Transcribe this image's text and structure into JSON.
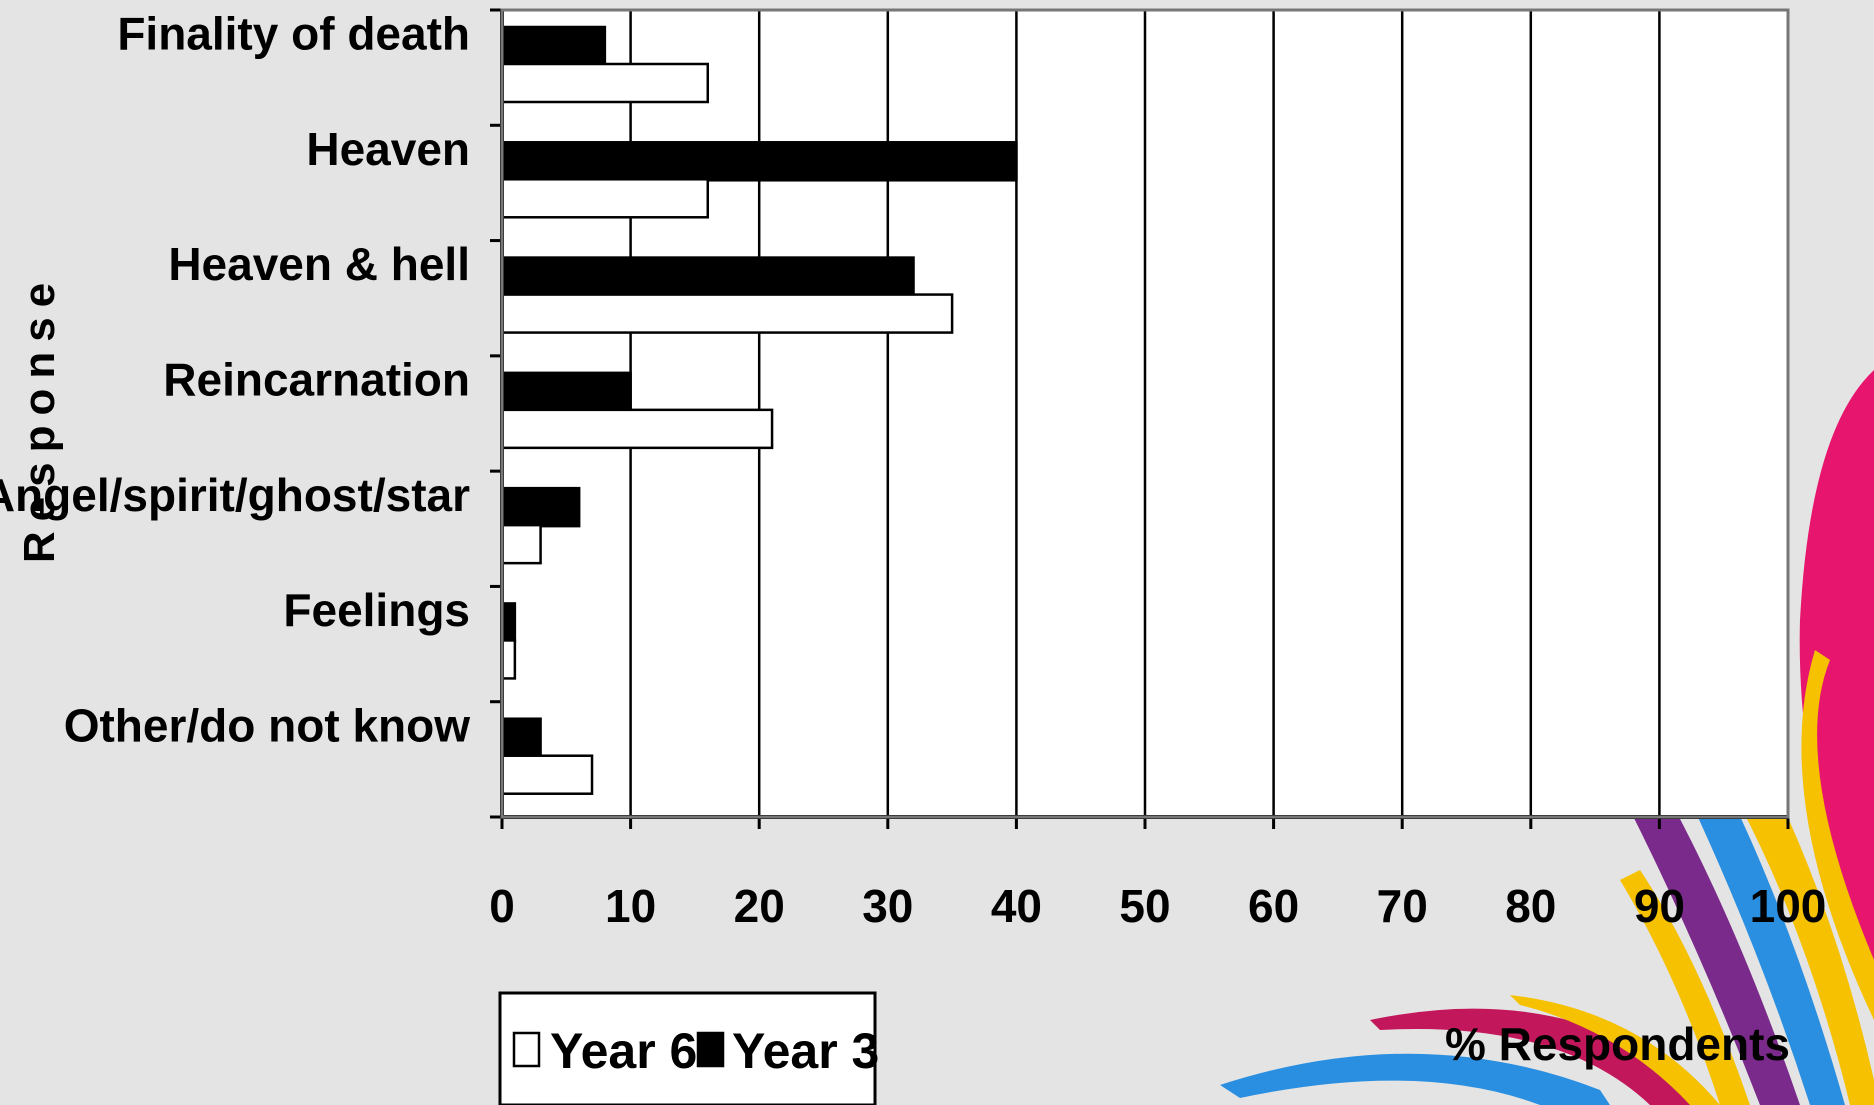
{
  "chart_data": {
    "type": "bar",
    "orientation": "horizontal",
    "categories": [
      "Finality of death",
      "Heaven",
      "Heaven & hell",
      "Reincarnation",
      "Angel/spirit/ghost/star",
      "Feelings",
      "Other/do not know"
    ],
    "series": [
      {
        "name": "Year 3",
        "color": "#000000",
        "values": [
          8,
          40,
          32,
          10,
          6,
          1,
          3
        ]
      },
      {
        "name": "Year 6",
        "color": "#ffffff",
        "values": [
          16,
          16,
          35,
          21,
          3,
          1,
          7
        ]
      }
    ],
    "xlim": [
      0,
      100
    ],
    "x_ticks": [
      "0",
      "10",
      "20",
      "30",
      "40",
      "50",
      "60",
      "70",
      "80",
      "90",
      "100"
    ],
    "xlabel": "% Respondents",
    "ylabel": "Response",
    "grid": "vertical",
    "legend": {
      "position": "bottom-left",
      "items": [
        {
          "label": "Year 6",
          "color": "#ffffff"
        },
        {
          "label": "Year 3",
          "color": "#000000"
        }
      ]
    }
  },
  "decoration": {
    "ribbon_colors": [
      "#e8156e",
      "#f5c100",
      "#2a8fe0",
      "#7a2a8a",
      "#c2185b"
    ]
  }
}
